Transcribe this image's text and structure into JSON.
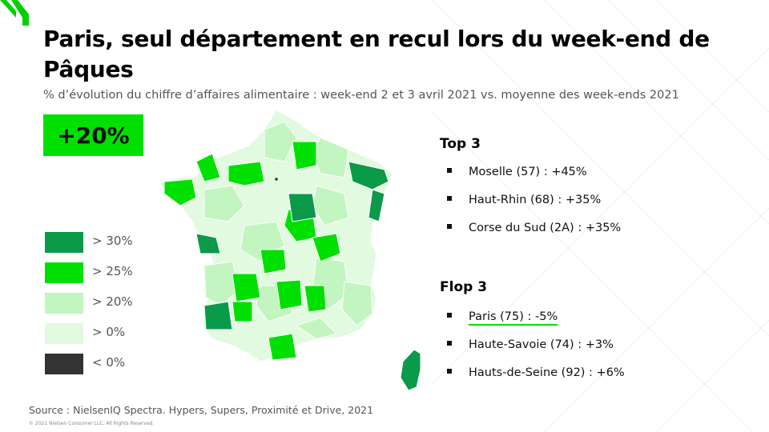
{
  "title": "Paris, seul département en recul lors du week-end de Pâques",
  "subtitle": "% d’évolution du chiffre d’affaires  alimentaire : week-end 2 et 3 avril 2021 vs. moyenne des week-ends 2021",
  "headline_value": "+20%",
  "legend": [
    {
      "label": "> 30%",
      "color": "#0a9a4a"
    },
    {
      "label": "> 25%",
      "color": "#00e000"
    },
    {
      "label": "> 20%",
      "color": "#c3f5c0"
    },
    {
      "label": "> 0%",
      "color": "#e2fae0"
    },
    {
      "label": "< 0%",
      "color": "#333333"
    }
  ],
  "top": {
    "title": "Top 3",
    "items": [
      "Moselle (57) : +45%",
      "Haut-Rhin (68) : +35%",
      "Corse du Sud (2A) : +35%"
    ]
  },
  "flop": {
    "title": "Flop 3",
    "items": [
      "Paris (75) : -5%",
      "Haute-Savoie (74)  : +3%",
      "Hauts-de-Seine (92) : +6%"
    ]
  },
  "source": "Source : NielsenIQ Spectra. Hypers, Supers, Proximité et Drive, 2021",
  "copyright": "© 2021 Nielsen Consumer LLC. All Rights Reserved."
}
